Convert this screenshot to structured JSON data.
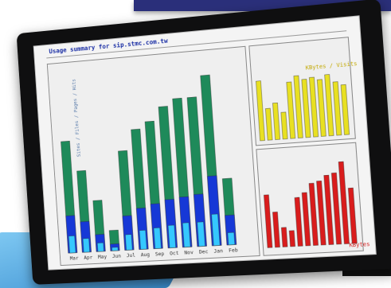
{
  "heading": {
    "title": "Usage summary for sip.stmc.com.tw"
  },
  "months": [
    "Mar",
    "Apr",
    "May",
    "Jun",
    "Jul",
    "Aug",
    "Sep",
    "Oct",
    "Nov",
    "Dec",
    "Jan",
    "Feb"
  ],
  "labels": {
    "left_axis": "Sites / Files / Pages / Hits",
    "right_top": "KBytes / Visits",
    "right_bottom": "KBytes"
  },
  "chart_data": {
    "type": "bar",
    "categories": [
      "Mar",
      "Apr",
      "May",
      "Jun",
      "Jul",
      "Aug",
      "Sep",
      "Oct",
      "Nov",
      "Dec",
      "Jan",
      "Feb"
    ],
    "series": [
      {
        "values": [
          66,
          48,
          30,
          12,
          58,
          70,
          74,
          82,
          86,
          86,
          98,
          38
        ]
      },
      {
        "values": [
          22,
          18,
          10,
          4,
          20,
          24,
          26,
          28,
          29,
          30,
          40,
          17
        ]
      },
      {
        "values": [
          10,
          8,
          5,
          2,
          9,
          11,
          12,
          13,
          14,
          14,
          18,
          7
        ]
      },
      {
        "values": [
          85,
          45,
          52,
          38,
          80,
          88,
          82,
          84,
          80,
          86,
          75,
          70
        ]
      },
      {
        "values": [
          60,
          40,
          22,
          18,
          55,
          60,
          70,
          72,
          78,
          80,
          92,
          62
        ]
      }
    ]
  },
  "colors": {
    "hits": "#1e8a5a",
    "files": "#1638d6",
    "pages": "#35c8ff",
    "visits": "#e8e022",
    "kbytes": "#d91c1c"
  }
}
